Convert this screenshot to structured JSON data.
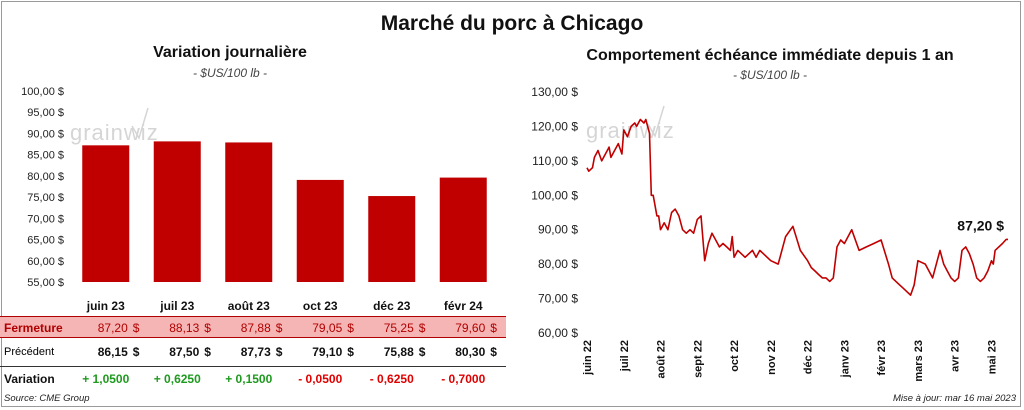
{
  "title": "Marché du porc à Chicago",
  "left": {
    "title": "Variation journalière",
    "unit": "- $US/100 lb -",
    "watermark": "grainwiz",
    "chart_data": {
      "type": "bar",
      "categories": [
        "juin 23",
        "juil 23",
        "août 23",
        "oct 23",
        "déc 23",
        "févr 24"
      ],
      "values": [
        87.2,
        88.13,
        87.88,
        79.05,
        75.25,
        79.6
      ],
      "ylim": [
        55,
        100
      ],
      "yticks": [
        55,
        60,
        65,
        70,
        75,
        80,
        85,
        90,
        95,
        100
      ],
      "ytick_labels": [
        "55,00 $",
        "60,00 $",
        "65,00 $",
        "70,00 $",
        "75,00 $",
        "80,00 $",
        "85,00 $",
        "90,00 $",
        "95,00 $",
        "100,00 $"
      ],
      "bar_color": "#c00000"
    },
    "table": {
      "close": {
        "label": "Fermeture",
        "values": [
          "87,20",
          "88,13",
          "87,88",
          "79,05",
          "75,25",
          "79,60"
        ],
        "unit": "$"
      },
      "previous": {
        "label": "Précédent",
        "values": [
          "86,15",
          "87,50",
          "87,73",
          "79,10",
          "75,88",
          "80,30"
        ],
        "unit": "$"
      },
      "variation": {
        "label": "Variation",
        "values": [
          "+ 1,0500",
          "+ 0,6250",
          "+ 0,1500",
          "- 0,0500",
          "- 0,6250",
          "- 0,7000"
        ]
      }
    }
  },
  "right": {
    "title": "Comportement  échéance immédiate depuis 1 an",
    "unit": "- $US/100 lb -",
    "watermark": "grainwiz",
    "chart_data": {
      "type": "line",
      "ylim": [
        60,
        130
      ],
      "yticks": [
        60,
        70,
        80,
        90,
        100,
        110,
        120,
        130
      ],
      "ytick_labels": [
        "60,00 $",
        "70,00 $",
        "80,00 $",
        "90,00 $",
        "100,00 $",
        "110,00 $",
        "120,00 $",
        "130,00 $"
      ],
      "xlabels": [
        "juin 22",
        "juil 22",
        "août 22",
        "sept 22",
        "oct 22",
        "nov 22",
        "déc 22",
        "janv 23",
        "févr 23",
        "mars 23",
        "avr 23",
        "mai 23"
      ],
      "x_months": [
        0,
        1,
        2,
        3,
        4,
        5,
        6,
        7,
        8,
        9,
        10,
        11
      ],
      "x": [
        0,
        0.05,
        0.15,
        0.2,
        0.3,
        0.4,
        0.5,
        0.6,
        0.65,
        0.75,
        0.85,
        0.95,
        1.0,
        1.1,
        1.2,
        1.3,
        1.35,
        1.45,
        1.55,
        1.6,
        1.7,
        1.75,
        1.8,
        1.9,
        1.95,
        2.0,
        2.05,
        2.1,
        2.2,
        2.3,
        2.4,
        2.5,
        2.6,
        2.7,
        2.8,
        2.9,
        3.0,
        3.1,
        3.2,
        3.3,
        3.4,
        3.5,
        3.6,
        3.7,
        3.8,
        3.9,
        3.95,
        4.0,
        4.1,
        4.2,
        4.3,
        4.4,
        4.5,
        4.6,
        4.7,
        4.8,
        4.9,
        5.0,
        5.2,
        5.4,
        5.6,
        5.8,
        6.0,
        6.1,
        6.2,
        6.3,
        6.4,
        6.5,
        6.6,
        6.7,
        6.8,
        6.9,
        7.0,
        7.2,
        7.4,
        7.6,
        7.8,
        8.0,
        8.2,
        8.3,
        8.4,
        8.5,
        8.6,
        8.7,
        8.8,
        8.9,
        9.0,
        9.2,
        9.4,
        9.6,
        9.7,
        9.8,
        9.9,
        10.0,
        10.1,
        10.2,
        10.3,
        10.4,
        10.5,
        10.6,
        10.7,
        10.8,
        10.9,
        11.0,
        11.05,
        11.1,
        11.2,
        11.3,
        11.4,
        11.45
      ],
      "y": [
        108,
        107,
        108,
        111,
        113,
        110,
        112,
        114,
        111,
        113,
        115,
        112,
        119,
        117,
        120,
        121,
        120,
        122,
        121,
        122,
        118,
        100,
        100,
        94,
        94,
        90,
        91,
        92,
        90,
        95,
        96,
        94,
        90,
        89,
        90,
        89,
        93,
        94,
        81,
        86,
        89,
        87,
        85,
        86,
        85,
        84,
        88,
        82,
        84,
        83,
        82,
        83,
        84,
        82,
        84,
        83,
        82,
        81,
        80,
        88,
        91,
        84,
        81,
        79,
        78,
        77,
        76,
        76,
        75,
        76,
        85,
        87,
        86,
        90,
        84,
        85,
        86,
        87,
        80,
        76,
        75,
        74,
        73,
        72,
        71,
        74,
        81,
        80,
        76,
        84,
        80,
        78,
        76,
        75,
        76,
        84,
        85,
        83,
        80,
        76,
        75,
        76,
        78,
        81,
        80,
        84,
        85,
        86,
        87.2,
        87.2
      ],
      "last_value_label": "87,20 $",
      "line_color": "#c00000"
    }
  },
  "footer": {
    "source": "Source: CME Group",
    "updated": "Mise à jour: mar 16 mai 2023"
  }
}
